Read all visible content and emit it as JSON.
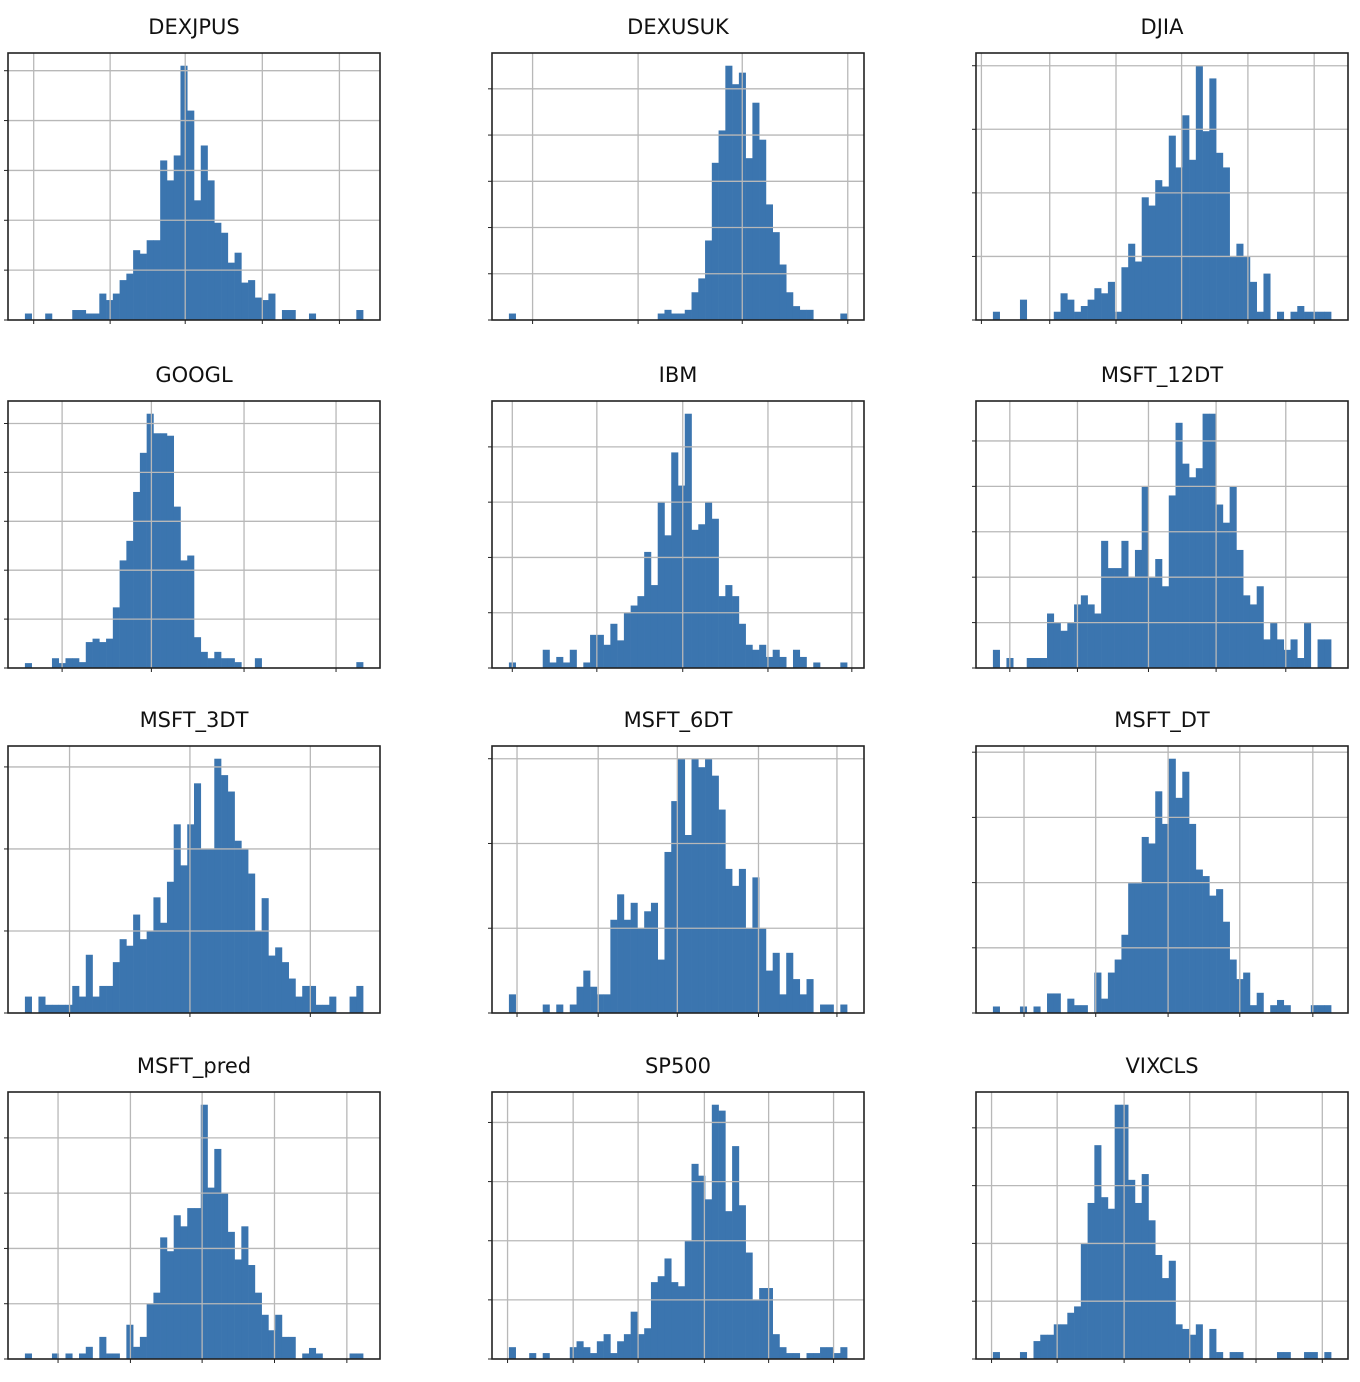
{
  "colors": {
    "bar": "#3b75af",
    "grid": "#b8b8b8",
    "axis": "#222222"
  },
  "chart_data": [
    {
      "type": "bar",
      "title": "DEXJPUS",
      "bins": 50,
      "xlim": [
        -2.5,
        52.5
      ],
      "xticks": [
        1.3,
        12.6,
        23.7,
        35.1,
        46.5
      ],
      "yticks": [
        1,
        2,
        3,
        4,
        5
      ],
      "values": [
        0.13,
        0,
        0,
        0.13,
        0,
        0,
        0,
        0.2,
        0.2,
        0.13,
        0.13,
        0.53,
        0.4,
        0.53,
        0.8,
        0.93,
        1.4,
        1.33,
        1.6,
        1.6,
        3.2,
        2.8,
        3.3,
        5.1,
        4.2,
        2.4,
        3.5,
        2.8,
        1.95,
        1.75,
        1.15,
        1.35,
        0.75,
        0.8,
        0.45,
        0.4,
        0.53,
        0,
        0.2,
        0.2,
        0,
        0,
        0.13,
        0,
        0,
        0,
        0,
        0,
        0,
        0.2
      ]
    },
    {
      "type": "bar",
      "title": "DEXUSUK",
      "bins": 50,
      "xlim": [
        -2.5,
        52.5
      ],
      "xticks": [
        3.5,
        19.1,
        34.5,
        50.1
      ],
      "yticks": [
        1,
        2,
        3,
        4,
        5
      ],
      "values": [
        0.14,
        0,
        0,
        0,
        0,
        0,
        0,
        0,
        0,
        0,
        0,
        0,
        0,
        0,
        0,
        0,
        0,
        0,
        0,
        0,
        0,
        0,
        0.14,
        0.22,
        0.14,
        0.14,
        0.22,
        0.6,
        0.9,
        1.72,
        3.4,
        4.1,
        5.5,
        5.1,
        5.35,
        3.5,
        4.7,
        3.9,
        2.5,
        1.9,
        1.2,
        0.6,
        0.3,
        0.22,
        0.22,
        0,
        0,
        0,
        0,
        0.14
      ]
    },
    {
      "type": "bar",
      "title": "DJIA",
      "bins": 50,
      "xlim": [
        -2.5,
        52.5
      ],
      "xticks": [
        -1.7,
        8.4,
        18.2,
        27.9,
        37.7,
        47.5
      ],
      "yticks": [
        1,
        2,
        3,
        4
      ],
      "values": [
        0.13,
        0,
        0,
        0,
        0.32,
        0,
        0,
        0,
        0,
        0.13,
        0.42,
        0.32,
        0.13,
        0.22,
        0.32,
        0.5,
        0.42,
        0.6,
        0.13,
        0.83,
        1.2,
        0.92,
        1.93,
        1.8,
        2.2,
        2.1,
        2.9,
        2.4,
        3.22,
        2.52,
        4.0,
        2.97,
        3.8,
        2.63,
        2.4,
        1.0,
        1.2,
        1.0,
        0.6,
        0.13,
        0.73,
        0,
        0.13,
        0,
        0.13,
        0.22,
        0.13,
        0.13,
        0.13,
        0.13
      ]
    },
    {
      "type": "bar",
      "title": "GOOGL",
      "bins": 50,
      "xlim": [
        -2.5,
        52.5
      ],
      "xticks": [
        5.5,
        18.7,
        32.4,
        46.0
      ],
      "yticks": [
        1,
        2,
        3,
        4,
        5
      ],
      "values": [
        0.1,
        0,
        0,
        0,
        0.2,
        0.1,
        0.2,
        0.2,
        0.12,
        0.53,
        0.6,
        0.53,
        0.6,
        1.24,
        2.2,
        2.6,
        3.6,
        4.4,
        5.2,
        4.8,
        4.8,
        4.75,
        3.3,
        2.2,
        2.3,
        0.63,
        0.33,
        0.2,
        0.33,
        0.2,
        0.2,
        0.12,
        0,
        0,
        0.2,
        0,
        0,
        0,
        0,
        0,
        0,
        0,
        0,
        0,
        0,
        0,
        0,
        0,
        0,
        0.12
      ]
    },
    {
      "type": "bar",
      "title": "IBM",
      "bins": 50,
      "xlim": [
        -2.5,
        52.5
      ],
      "xticks": [
        0.5,
        13.0,
        25.7,
        38.3,
        50.7
      ],
      "yticks": [
        1,
        2,
        3,
        4
      ],
      "values": [
        0.1,
        0,
        0,
        0,
        0,
        0.33,
        0.1,
        0.2,
        0.1,
        0.33,
        0,
        0.1,
        0.6,
        0.6,
        0.42,
        0.8,
        0.5,
        1.0,
        1.13,
        1.3,
        2.1,
        1.5,
        3.0,
        2.4,
        3.9,
        3.3,
        4.6,
        2.5,
        2.6,
        3.0,
        2.7,
        1.3,
        1.5,
        1.3,
        0.8,
        0.42,
        0.33,
        0.42,
        0.2,
        0.33,
        0.2,
        0,
        0.33,
        0.2,
        0,
        0.1,
        0,
        0,
        0,
        0.1
      ]
    },
    {
      "type": "bar",
      "title": "MSFT_12DT",
      "bins": 50,
      "xlim": [
        -2.5,
        52.5
      ],
      "xticks": [
        2.5,
        12.5,
        23.0,
        33.0,
        43.3
      ],
      "yticks": [
        1,
        2,
        3,
        4,
        5
      ],
      "values": [
        0.4,
        0,
        0.22,
        0,
        0,
        0.22,
        0.22,
        0.22,
        1.2,
        1.0,
        0.82,
        1.0,
        1.4,
        1.6,
        1.4,
        1.2,
        2.8,
        2.2,
        2.2,
        2.8,
        2.0,
        2.6,
        4.0,
        2.0,
        2.4,
        1.8,
        3.8,
        5.4,
        4.5,
        4.2,
        4.4,
        5.6,
        5.6,
        3.6,
        3.2,
        4.0,
        2.6,
        1.6,
        1.4,
        1.8,
        0.63,
        1.0,
        0.63,
        0.4,
        0.63,
        0.22,
        1.0,
        0,
        0.63,
        0.63
      ]
    },
    {
      "type": "bar",
      "title": "MSFT_3DT",
      "bins": 50,
      "xlim": [
        -2.5,
        52.5
      ],
      "xticks": [
        6.6,
        24.4,
        42.2
      ],
      "yticks": [
        1,
        2,
        3
      ],
      "values": [
        0.2,
        0,
        0.2,
        0.1,
        0.1,
        0.1,
        0.1,
        0.33,
        0.2,
        0.71,
        0.2,
        0.33,
        0.33,
        0.62,
        0.9,
        0.82,
        1.2,
        0.9,
        1.0,
        1.41,
        1.1,
        1.6,
        2.3,
        1.8,
        2.3,
        2.8,
        2.0,
        2.0,
        3.1,
        2.9,
        2.7,
        2.1,
        2.0,
        1.7,
        1.0,
        1.4,
        0.7,
        0.8,
        0.62,
        0.42,
        0.2,
        0.33,
        0.33,
        0.1,
        0.1,
        0.2,
        0,
        0,
        0.2,
        0.33
      ]
    },
    {
      "type": "bar",
      "title": "MSFT_6DT",
      "bins": 50,
      "xlim": [
        -2.5,
        52.5
      ],
      "xticks": [
        1.2,
        13.2,
        24.9,
        36.9,
        48.5
      ],
      "yticks": [
        1,
        2,
        3
      ],
      "values": [
        0.22,
        0,
        0,
        0,
        0,
        0.1,
        0,
        0.1,
        0,
        0.1,
        0.31,
        0.5,
        0.31,
        0.22,
        0.22,
        1.1,
        1.4,
        1.1,
        1.3,
        1.0,
        1.2,
        1.3,
        0.63,
        1.9,
        2.5,
        3.0,
        2.1,
        3.0,
        2.9,
        3.0,
        2.8,
        2.4,
        1.7,
        1.5,
        1.7,
        1.0,
        1.6,
        1.0,
        0.5,
        0.71,
        0.22,
        0.71,
        0.4,
        0.22,
        0.4,
        0,
        0.1,
        0.1,
        0,
        0.1
      ]
    },
    {
      "type": "bar",
      "title": "MSFT_DT",
      "bins": 50,
      "xlim": [
        -2.5,
        52.5
      ],
      "xticks": [
        4.6,
        15.2,
        25.9,
        36.5,
        47.3
      ],
      "yticks": [
        1,
        2,
        3,
        4
      ],
      "values": [
        0.1,
        0,
        0,
        0,
        0.1,
        0,
        0.1,
        0,
        0.3,
        0.3,
        0,
        0.22,
        0.12,
        0.12,
        0,
        0.62,
        0.22,
        0.62,
        0.82,
        1.2,
        1.99,
        1.99,
        2.7,
        2.6,
        3.4,
        2.9,
        3.9,
        3.3,
        3.7,
        2.9,
        2.2,
        2.1,
        1.8,
        1.9,
        1.4,
        0.82,
        0.52,
        0.62,
        0.12,
        0.31,
        0,
        0.12,
        0.2,
        0.12,
        0,
        0,
        0,
        0.12,
        0.12,
        0.12
      ]
    },
    {
      "type": "bar",
      "title": "MSFT_pred",
      "bins": 50,
      "xlim": [
        -2.5,
        52.5
      ],
      "xticks": [
        4.9,
        15.6,
        26.2,
        36.9,
        47.6
      ],
      "yticks": [
        1,
        2,
        3,
        4
      ],
      "values": [
        0.1,
        0,
        0,
        0,
        0.1,
        0,
        0.1,
        0,
        0.1,
        0.22,
        0,
        0.4,
        0.1,
        0.1,
        0,
        0.62,
        0.22,
        0.4,
        1.0,
        1.2,
        2.2,
        1.95,
        2.6,
        2.4,
        2.73,
        2.73,
        4.6,
        3.1,
        3.8,
        3.0,
        2.3,
        1.8,
        2.4,
        1.7,
        1.2,
        0.8,
        0.52,
        0.8,
        0.4,
        0.4,
        0,
        0.1,
        0.2,
        0.1,
        0,
        0,
        0,
        0,
        0.1,
        0.1
      ]
    },
    {
      "type": "bar",
      "title": "SP500",
      "bins": 50,
      "xlim": [
        -2.5,
        52.5
      ],
      "xticks": [
        -0.2,
        9.5,
        19.1,
        28.9,
        38.4,
        48.0
      ],
      "yticks": [
        1,
        2,
        3,
        4
      ],
      "values": [
        0.2,
        0,
        0,
        0.1,
        0,
        0.1,
        0,
        0,
        0,
        0.2,
        0.3,
        0.2,
        0.1,
        0.3,
        0.42,
        0.1,
        0.3,
        0.42,
        0.8,
        0.42,
        0.52,
        1.3,
        1.4,
        1.7,
        1.3,
        1.23,
        2.0,
        3.3,
        3.1,
        2.7,
        4.3,
        4.2,
        2.5,
        3.6,
        2.6,
        1.8,
        1.0,
        1.2,
        1.2,
        0.42,
        0.2,
        0.1,
        0.1,
        0,
        0.1,
        0.1,
        0.2,
        0.2,
        0.1,
        0.2
      ]
    },
    {
      "type": "bar",
      "title": "VIXCLS",
      "bins": 50,
      "xlim": [
        -2.5,
        52.5
      ],
      "xticks": [
        -0.2,
        9.5,
        19.4,
        29.1,
        38.9,
        48.7
      ],
      "yticks": [
        1,
        2,
        3,
        4
      ],
      "values": [
        0.12,
        0,
        0,
        0,
        0.12,
        0,
        0.31,
        0.42,
        0.42,
        0.6,
        0.6,
        0.8,
        0.91,
        2.0,
        2.7,
        3.7,
        2.8,
        2.6,
        4.4,
        4.4,
        3.1,
        2.7,
        3.2,
        2.4,
        1.8,
        1.4,
        1.7,
        0.6,
        0.52,
        0.42,
        0.6,
        0,
        0.52,
        0.12,
        0,
        0.12,
        0.12,
        0,
        0,
        0,
        0,
        0,
        0.12,
        0.12,
        0,
        0,
        0.12,
        0.12,
        0,
        0.12
      ]
    }
  ]
}
